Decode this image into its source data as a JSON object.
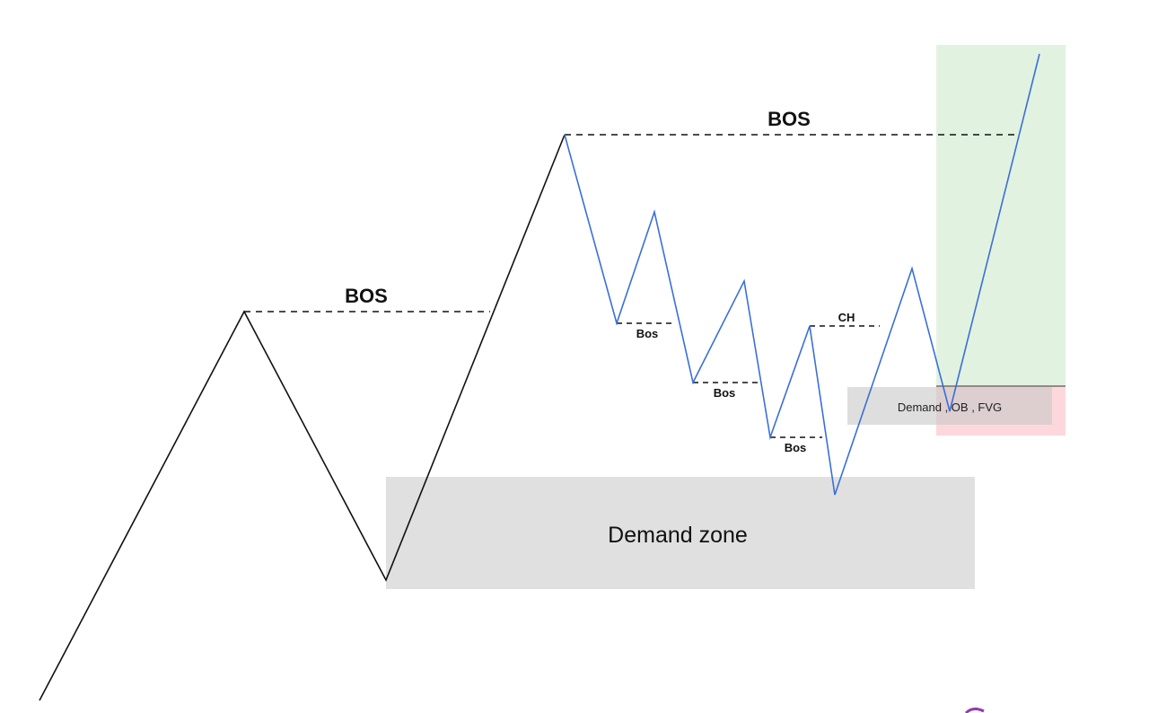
{
  "labels": {
    "bos_major_1": "BOS",
    "bos_major_2": "BOS",
    "bos_minor_1": "Bos",
    "bos_minor_2": "Bos",
    "bos_minor_3": "Bos",
    "choch": "CH",
    "demand_zone": "Demand zone",
    "demand_ob_fvg": "Demand , OB , FVG"
  },
  "colors": {
    "background": "#ffffff",
    "uptrend_line": "#111111",
    "price_path": "#3a6fd8",
    "bos_line": "#111111",
    "demand_zone_fill": "#e0e0e0",
    "take_profit_fill": "#e1f2e1",
    "stop_loss_fill": "#fcd8dc",
    "entry_line": "#555555",
    "watermark": "#8e3fb0"
  },
  "icons": {
    "watermark": "logo-fragment-icon"
  }
}
